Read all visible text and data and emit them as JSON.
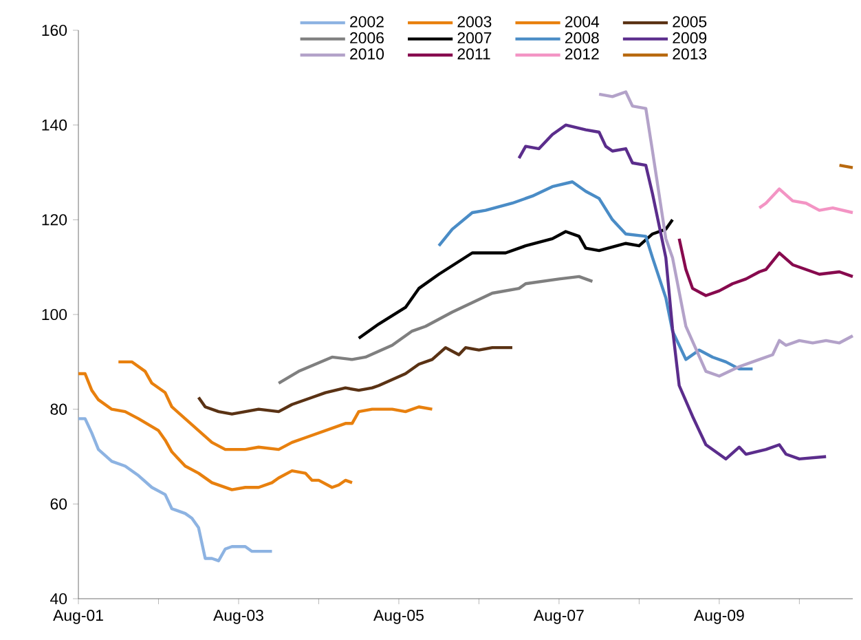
{
  "chart_data": {
    "type": "line",
    "xlim": [
      "2001-08",
      "2011-04"
    ],
    "ylim": [
      40,
      160
    ],
    "xticks": [
      {
        "value": "2001-08",
        "label": "Aug-01"
      },
      {
        "value": "2002-08",
        "label": null
      },
      {
        "value": "2003-08",
        "label": "Aug-03"
      },
      {
        "value": "2004-08",
        "label": null
      },
      {
        "value": "2005-08",
        "label": "Aug-05"
      },
      {
        "value": "2006-08",
        "label": null
      },
      {
        "value": "2007-08",
        "label": "Aug-07"
      },
      {
        "value": "2008-08",
        "label": null
      },
      {
        "value": "2009-08",
        "label": "Aug-09"
      },
      {
        "value": "2010-08",
        "label": null
      }
    ],
    "yticks": [
      40,
      60,
      80,
      100,
      120,
      140,
      160
    ],
    "legend": "top",
    "series": [
      {
        "name": "2002",
        "color": "#8db3e2",
        "x": [
          "2001-08",
          "2001-09",
          "2001-10",
          "2001-11",
          "2002-01",
          "2002-03",
          "2002-05",
          "2002-07",
          "2002-09",
          "2002-10",
          "2002-12",
          "2003-01",
          "2003-02",
          "2003-03",
          "2003-04",
          "2003-05",
          "2003-06",
          "2003-07",
          "2003-09",
          "2003-10",
          "2004-01"
        ],
        "values": [
          78,
          78,
          75,
          71.5,
          69,
          68,
          66,
          63.5,
          62,
          59,
          58,
          57,
          55,
          48.5,
          48.5,
          48,
          50.5,
          51,
          51,
          50,
          50
        ]
      },
      {
        "name": "2003",
        "color": "#e8800e",
        "x": [
          "2001-08",
          "2001-09",
          "2001-10",
          "2001-11",
          "2002-01",
          "2002-03",
          "2002-05",
          "2002-08",
          "2002-09",
          "2002-10",
          "2002-12",
          "2003-02",
          "2003-04",
          "2003-07",
          "2003-09",
          "2003-11",
          "2004-01",
          "2004-02",
          "2004-04",
          "2004-06",
          "2004-07",
          "2004-08",
          "2004-10",
          "2004-11",
          "2004-12",
          "2005-01"
        ],
        "values": [
          87.5,
          87.5,
          84,
          82,
          80,
          79.5,
          78,
          75.5,
          73.5,
          71,
          68,
          66.5,
          64.5,
          63,
          63.5,
          63.5,
          64.5,
          65.5,
          67,
          66.5,
          65,
          65,
          63.5,
          64,
          65,
          64.5
        ]
      },
      {
        "name": "2004",
        "color": "#e8800e",
        "x": [
          "2002-02",
          "2002-04",
          "2002-06",
          "2002-07",
          "2002-09",
          "2002-10",
          "2002-12",
          "2003-02",
          "2003-04",
          "2003-06",
          "2003-08",
          "2003-09",
          "2003-11",
          "2004-02",
          "2004-04",
          "2004-06",
          "2004-08",
          "2004-10",
          "2004-12",
          "2005-01",
          "2005-02",
          "2005-04",
          "2005-07",
          "2005-09",
          "2005-11",
          "2006-01"
        ],
        "values": [
          90,
          90,
          88,
          85.5,
          83.5,
          80.5,
          78,
          75.5,
          73,
          71.5,
          71.5,
          71.5,
          72,
          71.5,
          73,
          74,
          75,
          76,
          77,
          77,
          79.5,
          80,
          80,
          79.5,
          80.5,
          80
        ]
      },
      {
        "name": "2005",
        "color": "#5a3214",
        "x": [
          "2003-02",
          "2003-03",
          "2003-05",
          "2003-07",
          "2003-09",
          "2003-11",
          "2004-02",
          "2004-04",
          "2004-07",
          "2004-09",
          "2004-12",
          "2005-02",
          "2005-04",
          "2005-05",
          "2005-09",
          "2005-11",
          "2006-01",
          "2006-03",
          "2006-05",
          "2006-06",
          "2006-08",
          "2006-10",
          "2007-01"
        ],
        "values": [
          82.5,
          80.5,
          79.5,
          79,
          79.5,
          80,
          79.5,
          81,
          82.5,
          83.5,
          84.5,
          84,
          84.5,
          85,
          87.5,
          89.5,
          90.5,
          93,
          91.5,
          93,
          92.5,
          93,
          93
        ]
      },
      {
        "name": "2006",
        "color": "#7f7f7f",
        "x": [
          "2004-02",
          "2004-05",
          "2004-10",
          "2005-01",
          "2005-03",
          "2005-07",
          "2005-10",
          "2005-12",
          "2006-04",
          "2006-07",
          "2006-10",
          "2007-02",
          "2007-03",
          "2007-08",
          "2007-11",
          "2008-01"
        ],
        "values": [
          85.5,
          88,
          91,
          90.5,
          91,
          93.5,
          96.5,
          97.5,
          100.5,
          102.5,
          104.5,
          105.5,
          106.5,
          107.5,
          108,
          107
        ]
      },
      {
        "name": "2007",
        "color": "#000000",
        "x": [
          "2005-02",
          "2005-05",
          "2005-09",
          "2005-11",
          "2006-02",
          "2006-07",
          "2006-12",
          "2007-03",
          "2007-07",
          "2007-09",
          "2007-11",
          "2007-12",
          "2008-02",
          "2008-06",
          "2008-08",
          "2008-10",
          "2008-12",
          "2009-01"
        ],
        "values": [
          95,
          98,
          101.5,
          105.5,
          108.5,
          113,
          113,
          114.5,
          116,
          117.5,
          116.5,
          114,
          113.5,
          115,
          114.5,
          117,
          118,
          120
        ]
      },
      {
        "name": "2008",
        "color": "#4a8cc6",
        "x": [
          "2006-02",
          "2006-04",
          "2006-07",
          "2006-09",
          "2007-01",
          "2007-04",
          "2007-07",
          "2007-10",
          "2007-12",
          "2008-02",
          "2008-04",
          "2008-06",
          "2008-09",
          "2008-10",
          "2008-12",
          "2009-01",
          "2009-03",
          "2009-05",
          "2009-07",
          "2009-09",
          "2009-11",
          "2010-01"
        ],
        "values": [
          114.5,
          118,
          121.5,
          122,
          123.5,
          125,
          127,
          128,
          126,
          124.5,
          120,
          117,
          116.5,
          112,
          103.5,
          96.5,
          90.5,
          92.5,
          91,
          90,
          88.5,
          88.5
        ]
      },
      {
        "name": "2009",
        "color": "#5b2d8c",
        "x": [
          "2007-02",
          "2007-03",
          "2007-05",
          "2007-07",
          "2007-09",
          "2007-12",
          "2008-02",
          "2008-03",
          "2008-04",
          "2008-06",
          "2008-07",
          "2008-09",
          "2008-10",
          "2008-12",
          "2009-01",
          "2009-02",
          "2009-04",
          "2009-06",
          "2009-09",
          "2009-11",
          "2009-12",
          "2010-03",
          "2010-05",
          "2010-06",
          "2010-08",
          "2010-12"
        ],
        "values": [
          133,
          135.5,
          135,
          138,
          140,
          139,
          138.5,
          135.5,
          134.5,
          135,
          132,
          131.5,
          125.5,
          112,
          97,
          85,
          78.5,
          72.5,
          69.5,
          72,
          70.5,
          71.5,
          72.5,
          70.5,
          69.5,
          70
        ]
      },
      {
        "name": "2010",
        "color": "#b3a2c9",
        "x": [
          "2008-02",
          "2008-04",
          "2008-06",
          "2008-07",
          "2008-09",
          "2008-10",
          "2008-12",
          "2009-01",
          "2009-03",
          "2009-06",
          "2009-08",
          "2009-11",
          "2010-02",
          "2010-04",
          "2010-05",
          "2010-06",
          "2010-08",
          "2010-10",
          "2010-12",
          "2011-02",
          "2011-04"
        ],
        "values": [
          146.5,
          146,
          147,
          144,
          143.5,
          134.5,
          116,
          112,
          97.5,
          88,
          87,
          89,
          90.5,
          91.5,
          94.5,
          93.5,
          94.5,
          94,
          94.5,
          94,
          95.5
        ]
      },
      {
        "name": "2011",
        "color": "#870a4e",
        "x": [
          "2009-02",
          "2009-03",
          "2009-04",
          "2009-06",
          "2009-08",
          "2009-10",
          "2009-12",
          "2010-02",
          "2010-03",
          "2010-05",
          "2010-07",
          "2010-09",
          "2010-11",
          "2011-02",
          "2011-04"
        ],
        "values": [
          116,
          109.5,
          105.5,
          104,
          105,
          106.5,
          107.5,
          109,
          109.5,
          113,
          110.5,
          109.5,
          108.5,
          109,
          108
        ]
      },
      {
        "name": "2012",
        "color": "#f394c4",
        "x": [
          "2010-02",
          "2010-03",
          "2010-05",
          "2010-07",
          "2010-09",
          "2010-11",
          "2011-01",
          "2011-04"
        ],
        "values": [
          122.5,
          123.5,
          126.5,
          124,
          123.5,
          122,
          122.5,
          121.5
        ]
      },
      {
        "name": "2013",
        "color": "#b8690f",
        "x": [
          "2011-02",
          "2011-04"
        ],
        "values": [
          131.5,
          131
        ]
      }
    ]
  }
}
